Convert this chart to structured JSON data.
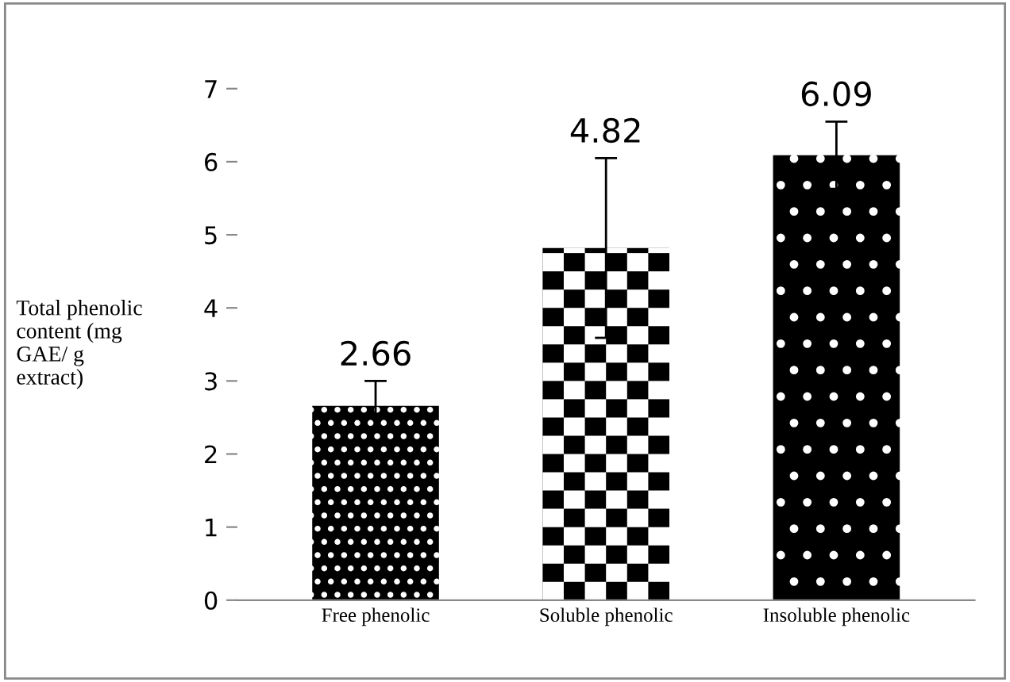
{
  "chart_data": {
    "type": "bar",
    "categories": [
      "Free phenolic",
      "Soluble phenolic",
      "Insoluble phenolic"
    ],
    "values": [
      2.66,
      4.82,
      6.09
    ],
    "errors": [
      0.34,
      1.23,
      0.46
    ],
    "colors": [
      "#000000",
      "#000000",
      "#000000"
    ],
    "ylabel": "Total phenolic\ncontent (mg\nGAE/ g\nextract)",
    "ylim": [
      0,
      7
    ],
    "yticks": [
      0,
      1,
      2,
      3,
      4,
      5,
      6,
      7
    ],
    "data_labels": true,
    "grid": false,
    "legend": false
  }
}
